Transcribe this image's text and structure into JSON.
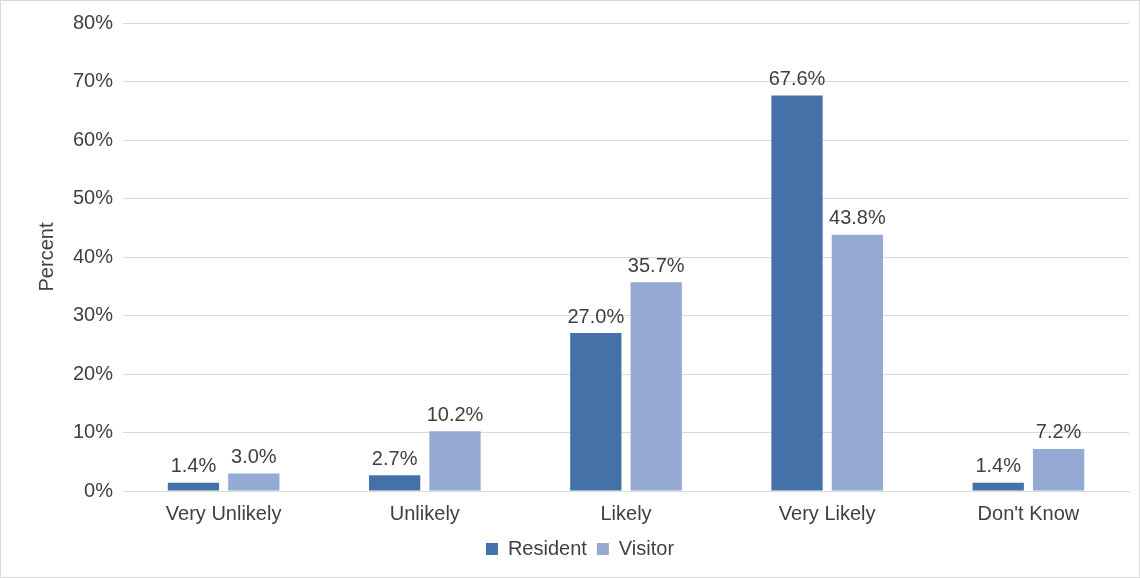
{
  "chart_data": {
    "type": "bar",
    "ylabel": "Percent",
    "categories": [
      "Very Unlikely",
      "Unlikely",
      "Likely",
      "Very Likely",
      "Don't Know"
    ],
    "series": [
      {
        "name": "Resident",
        "color": "#4472a8",
        "values": [
          1.4,
          2.7,
          27.0,
          67.6,
          1.4
        ],
        "value_labels": [
          "1.4%",
          "2.7%",
          "27.0%",
          "67.6%",
          "1.4%"
        ]
      },
      {
        "name": "Visitor",
        "color": "#95aad3",
        "values": [
          3.0,
          10.2,
          35.7,
          43.8,
          7.2
        ],
        "value_labels": [
          "3.0%",
          "10.2%",
          "35.7%",
          "43.8%",
          "7.2%"
        ]
      }
    ],
    "ylim": [
      0,
      80
    ],
    "yticks": [
      {
        "value": 0,
        "label": "0%"
      },
      {
        "value": 10,
        "label": "10%"
      },
      {
        "value": 20,
        "label": "20%"
      },
      {
        "value": 30,
        "label": "30%"
      },
      {
        "value": 40,
        "label": "40%"
      },
      {
        "value": 50,
        "label": "50%"
      },
      {
        "value": 60,
        "label": "60%"
      },
      {
        "value": 70,
        "label": "70%"
      },
      {
        "value": 80,
        "label": "80%"
      }
    ],
    "grid": "y",
    "legend": "bottom"
  }
}
